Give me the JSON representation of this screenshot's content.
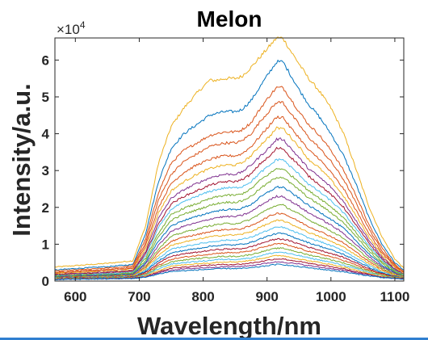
{
  "chart_data": {
    "type": "line",
    "title": "Melon",
    "xlabel": "Wavelength/nm",
    "ylabel": "Intensity/a.u.",
    "xlim": [
      568,
      1114
    ],
    "ylim": [
      0,
      66000
    ],
    "x_ticks": [
      600,
      700,
      800,
      900,
      1000,
      1100
    ],
    "x_tick_labels": [
      "600",
      "700",
      "800",
      "900",
      "1000",
      "1100"
    ],
    "y_ticks": [
      0,
      10000,
      20000,
      30000,
      40000,
      50000,
      60000
    ],
    "y_tick_labels": [
      "0",
      "1",
      "2",
      "3",
      "4",
      "5",
      "6"
    ],
    "y_exponent_label": "×10^4",
    "grid": false,
    "legend": "none",
    "x": [
      568,
      600,
      650,
      690,
      710,
      730,
      750,
      770,
      790,
      810,
      820,
      835,
      850,
      860,
      875,
      890,
      905,
      915,
      925,
      935,
      950,
      965,
      980,
      1000,
      1020,
      1040,
      1060,
      1080,
      1100,
      1114
    ],
    "series": [
      {
        "color": "#EDB120",
        "values": [
          3800,
          4200,
          4800,
          5500,
          15000,
          32000,
          42000,
          47000,
          51000,
          54500,
          54500,
          55000,
          55000,
          55500,
          58000,
          61000,
          64000,
          66000,
          66000,
          63000,
          59000,
          55000,
          52000,
          47000,
          40000,
          30000,
          20000,
          12000,
          6000,
          3500
        ]
      },
      {
        "color": "#0072BD",
        "values": [
          3000,
          3400,
          3900,
          4500,
          13000,
          27000,
          36000,
          40000,
          42500,
          45000,
          45500,
          46000,
          46000,
          46500,
          49000,
          53000,
          57000,
          59500,
          59500,
          56500,
          52000,
          48000,
          45000,
          40000,
          34000,
          26000,
          17000,
          10000,
          5000,
          3000
        ]
      },
      {
        "color": "#D95319",
        "values": [
          2700,
          3000,
          3500,
          4100,
          11500,
          24000,
          32000,
          35500,
          37500,
          39500,
          40000,
          40500,
          40500,
          41000,
          43000,
          47000,
          50500,
          52500,
          52500,
          50000,
          46000,
          42500,
          40000,
          35500,
          30000,
          23000,
          15000,
          9000,
          4500,
          2700
        ]
      },
      {
        "color": "#D95319",
        "values": [
          2400,
          2700,
          3100,
          3700,
          10500,
          22000,
          29000,
          32500,
          34500,
          36500,
          37000,
          37500,
          37500,
          38000,
          40000,
          43500,
          46500,
          48500,
          48500,
          46000,
          42500,
          39000,
          36500,
          32500,
          27500,
          21000,
          14000,
          8300,
          4200,
          2500
        ]
      },
      {
        "color": "#D95319",
        "values": [
          2200,
          2500,
          2900,
          3400,
          9700,
          20000,
          26500,
          29500,
          31500,
          33000,
          33500,
          34000,
          34000,
          34500,
          36500,
          39500,
          42500,
          44500,
          44500,
          42000,
          39000,
          35500,
          33500,
          29500,
          25000,
          19000,
          12800,
          7600,
          3900,
          2300
        ]
      },
      {
        "color": "#EDB120",
        "values": [
          2000,
          2300,
          2600,
          3100,
          8800,
          18500,
          24500,
          27000,
          29000,
          30500,
          31000,
          31500,
          31500,
          32000,
          34000,
          37000,
          39500,
          41500,
          41500,
          39500,
          36500,
          33000,
          31000,
          27500,
          23000,
          17500,
          11800,
          7000,
          3600,
          2100
        ]
      },
      {
        "color": "#7E2F8E",
        "values": [
          1800,
          2100,
          2400,
          2800,
          8000,
          17000,
          22500,
          24800,
          26500,
          28000,
          28500,
          29000,
          29000,
          29500,
          31500,
          34000,
          36500,
          38500,
          38500,
          36500,
          33500,
          30500,
          28500,
          25500,
          21500,
          16200,
          11000,
          6500,
          3300,
          1900
        ]
      },
      {
        "color": "#A2142F",
        "values": [
          1700,
          1900,
          2200,
          2600,
          7400,
          15500,
          21000,
          23000,
          24500,
          26000,
          26500,
          27000,
          27000,
          27500,
          29000,
          32000,
          34000,
          36000,
          36000,
          34000,
          31500,
          28500,
          26500,
          23500,
          20000,
          15000,
          10200,
          6000,
          3100,
          1800
        ]
      },
      {
        "color": "#4DBEEE",
        "values": [
          1500,
          1700,
          2000,
          2400,
          6800,
          14500,
          19500,
          21500,
          23000,
          24300,
          24800,
          25300,
          25300,
          25600,
          27000,
          29500,
          31500,
          33000,
          33000,
          31300,
          29000,
          26300,
          24500,
          21800,
          18500,
          14000,
          9500,
          5600,
          2900,
          1700
        ]
      },
      {
        "color": "#77AC30",
        "values": [
          1400,
          1600,
          1800,
          2200,
          6200,
          13000,
          18000,
          19800,
          21000,
          22300,
          22800,
          23300,
          23300,
          23600,
          25000,
          27500,
          29300,
          30500,
          30500,
          29000,
          27000,
          24500,
          22800,
          20200,
          17200,
          13000,
          8800,
          5200,
          2700,
          1600
        ]
      },
      {
        "color": "#77AC30",
        "values": [
          1300,
          1500,
          1700,
          2000,
          5600,
          12000,
          16500,
          18200,
          19300,
          20500,
          21000,
          21400,
          21400,
          21700,
          23000,
          25200,
          27000,
          28200,
          28200,
          26800,
          24800,
          22600,
          21000,
          18600,
          15800,
          12000,
          8100,
          4800,
          2500,
          1500
        ]
      },
      {
        "color": "#0072BD",
        "values": [
          1200,
          1400,
          1600,
          1850,
          5100,
          10800,
          15000,
          16500,
          17500,
          18600,
          19000,
          19400,
          19400,
          19700,
          20800,
          22800,
          24500,
          25500,
          25500,
          24300,
          22500,
          20500,
          19000,
          16800,
          14300,
          10800,
          7300,
          4300,
          2300,
          1400
        ]
      },
      {
        "color": "#7E2F8E",
        "values": [
          1100,
          1300,
          1450,
          1700,
          4600,
          9700,
          13500,
          14900,
          15800,
          16800,
          17200,
          17500,
          17500,
          17800,
          18800,
          20600,
          22100,
          23000,
          23000,
          21900,
          20300,
          18500,
          17200,
          15200,
          12900,
          9800,
          6600,
          3900,
          2100,
          1300
        ]
      },
      {
        "color": "#77AC30",
        "values": [
          1000,
          1200,
          1350,
          1550,
          4100,
          8700,
          12100,
          13300,
          14100,
          15000,
          15300,
          15600,
          15600,
          15900,
          16800,
          18400,
          19800,
          20600,
          20600,
          19600,
          18200,
          16600,
          15400,
          13600,
          11600,
          8800,
          5900,
          3500,
          1900,
          1200
        ]
      },
      {
        "color": "#D95319",
        "values": [
          950,
          1100,
          1250,
          1450,
          3700,
          7800,
          10800,
          11900,
          12600,
          13400,
          13700,
          14000,
          14000,
          14200,
          15000,
          16400,
          17700,
          18400,
          18400,
          17500,
          16200,
          14800,
          13700,
          12100,
          10300,
          7800,
          5300,
          3100,
          1700,
          1100
        ]
      },
      {
        "color": "#EDB120",
        "values": [
          900,
          1050,
          1150,
          1350,
          3300,
          7000,
          9700,
          10600,
          11300,
          12000,
          12200,
          12500,
          12500,
          12700,
          13400,
          14700,
          15800,
          16400,
          16400,
          15600,
          14500,
          13200,
          12200,
          10800,
          9200,
          7000,
          4700,
          2800,
          1600,
          1000
        ]
      },
      {
        "color": "#4DBEEE",
        "values": [
          850,
          950,
          1050,
          1250,
          2900,
          6200,
          8600,
          9400,
          10000,
          10600,
          10800,
          11100,
          11100,
          11300,
          11900,
          13000,
          14000,
          14600,
          14600,
          13900,
          12900,
          11700,
          10900,
          9600,
          8200,
          6200,
          4200,
          2500,
          1400,
          950
        ]
      },
      {
        "color": "#0072BD",
        "values": [
          800,
          900,
          1000,
          1150,
          2600,
          5500,
          7600,
          8300,
          8800,
          9400,
          9600,
          9800,
          9800,
          10000,
          10500,
          11500,
          12400,
          12900,
          12900,
          12300,
          11400,
          10400,
          9600,
          8500,
          7200,
          5500,
          3700,
          2200,
          1300,
          900
        ]
      },
      {
        "color": "#A2142F",
        "values": [
          750,
          850,
          950,
          1100,
          2300,
          4900,
          6700,
          7400,
          7800,
          8300,
          8500,
          8700,
          8700,
          8800,
          9300,
          10200,
          11000,
          11400,
          11400,
          10900,
          10100,
          9200,
          8500,
          7500,
          6400,
          4900,
          3300,
          2000,
          1200,
          850
        ]
      },
      {
        "color": "#D95319",
        "values": [
          700,
          800,
          900,
          1000,
          2000,
          4300,
          5900,
          6500,
          6900,
          7300,
          7500,
          7700,
          7700,
          7800,
          8200,
          9000,
          9700,
          10100,
          10100,
          9600,
          8900,
          8100,
          7500,
          6600,
          5600,
          4300,
          2900,
          1800,
          1100,
          800
        ]
      },
      {
        "color": "#77AC30",
        "values": [
          650,
          750,
          850,
          950,
          1800,
          3800,
          5200,
          5700,
          6100,
          6400,
          6600,
          6700,
          6700,
          6800,
          7200,
          7900,
          8500,
          8900,
          8900,
          8500,
          7800,
          7100,
          6600,
          5800,
          4900,
          3800,
          2600,
          1600,
          1000,
          750
        ]
      },
      {
        "color": "#4DBEEE",
        "values": [
          600,
          700,
          800,
          900,
          1600,
          3300,
          4600,
          5000,
          5300,
          5600,
          5800,
          5900,
          5900,
          6000,
          6300,
          6900,
          7500,
          7800,
          7800,
          7400,
          6900,
          6300,
          5800,
          5100,
          4300,
          3300,
          2300,
          1400,
          900,
          700
        ]
      },
      {
        "color": "#EDB120",
        "values": [
          550,
          650,
          750,
          850,
          1400,
          2900,
          4000,
          4400,
          4700,
          4900,
          5100,
          5200,
          5200,
          5300,
          5600,
          6100,
          6600,
          6900,
          6900,
          6500,
          6000,
          5500,
          5100,
          4500,
          3800,
          2900,
          2000,
          1300,
          850,
          650
        ]
      },
      {
        "color": "#A2142F",
        "values": [
          500,
          600,
          700,
          800,
          1250,
          2500,
          3500,
          3800,
          4100,
          4300,
          4400,
          4500,
          4500,
          4600,
          4900,
          5300,
          5800,
          6000,
          6000,
          5700,
          5300,
          4800,
          4400,
          3900,
          3300,
          2500,
          1800,
          1100,
          800,
          600
        ]
      },
      {
        "color": "#7E2F8E",
        "values": [
          450,
          550,
          650,
          750,
          1100,
          2200,
          3000,
          3300,
          3500,
          3700,
          3800,
          3900,
          3900,
          4000,
          4200,
          4600,
          5000,
          5200,
          5200,
          4900,
          4600,
          4200,
          3800,
          3400,
          2900,
          2200,
          1600,
          1000,
          750,
          550
        ]
      },
      {
        "color": "#0072BD",
        "values": [
          400,
          500,
          600,
          700,
          1000,
          1900,
          2600,
          2800,
          3000,
          3200,
          3300,
          3400,
          3400,
          3400,
          3600,
          3900,
          4300,
          4500,
          4500,
          4200,
          3900,
          3600,
          3300,
          2900,
          2500,
          1900,
          1400,
          950,
          700,
          500
        ]
      }
    ]
  }
}
